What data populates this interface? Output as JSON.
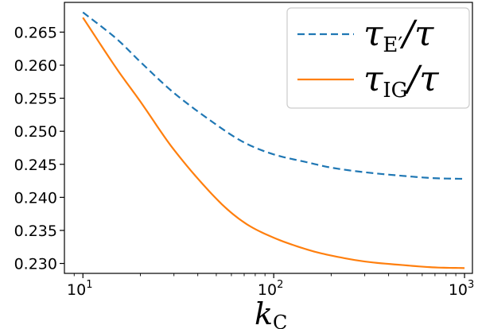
{
  "chart_data": {
    "type": "line",
    "xscale": "log",
    "xlim": [
      8,
      1100
    ],
    "ylim": [
      0.2285,
      0.2695
    ],
    "xticks": [
      {
        "value": 10,
        "base": "10",
        "exp": "1"
      },
      {
        "value": 100,
        "base": "10",
        "exp": "2"
      },
      {
        "value": 1000,
        "base": "10",
        "exp": "3"
      }
    ],
    "yticks": [
      {
        "value": 0.23,
        "label": "0.230"
      },
      {
        "value": 0.235,
        "label": "0.235"
      },
      {
        "value": 0.24,
        "label": "0.240"
      },
      {
        "value": 0.245,
        "label": "0.245"
      },
      {
        "value": 0.25,
        "label": "0.250"
      },
      {
        "value": 0.255,
        "label": "0.255"
      },
      {
        "value": 0.26,
        "label": "0.260"
      },
      {
        "value": 0.265,
        "label": "0.265"
      }
    ],
    "xlabel": {
      "main": "k",
      "sub": "C"
    },
    "grid": false,
    "legend_position": "top-right",
    "series": [
      {
        "name": "τE′/τ",
        "name_main": "τ",
        "name_sub": "E′",
        "name_tail": "/τ",
        "color": "#1f77b4",
        "style": "dashed",
        "x": [
          10,
          15,
          20,
          30,
          50,
          70,
          100,
          150,
          200,
          300,
          500,
          700,
          1000
        ],
        "y": [
          0.268,
          0.264,
          0.2605,
          0.2558,
          0.251,
          0.2483,
          0.2465,
          0.2453,
          0.2445,
          0.2438,
          0.2432,
          0.2429,
          0.2428
        ]
      },
      {
        "name": "τIG/τ",
        "name_main": "τ",
        "name_sub": "IG",
        "name_tail": "/τ",
        "color": "#ff7f0e",
        "style": "solid",
        "x": [
          10,
          15,
          20,
          30,
          50,
          70,
          100,
          150,
          200,
          300,
          500,
          700,
          1000
        ],
        "y": [
          0.2672,
          0.2595,
          0.2545,
          0.2472,
          0.2398,
          0.2362,
          0.2339,
          0.2321,
          0.2312,
          0.2303,
          0.2297,
          0.2294,
          0.2293
        ]
      }
    ]
  }
}
